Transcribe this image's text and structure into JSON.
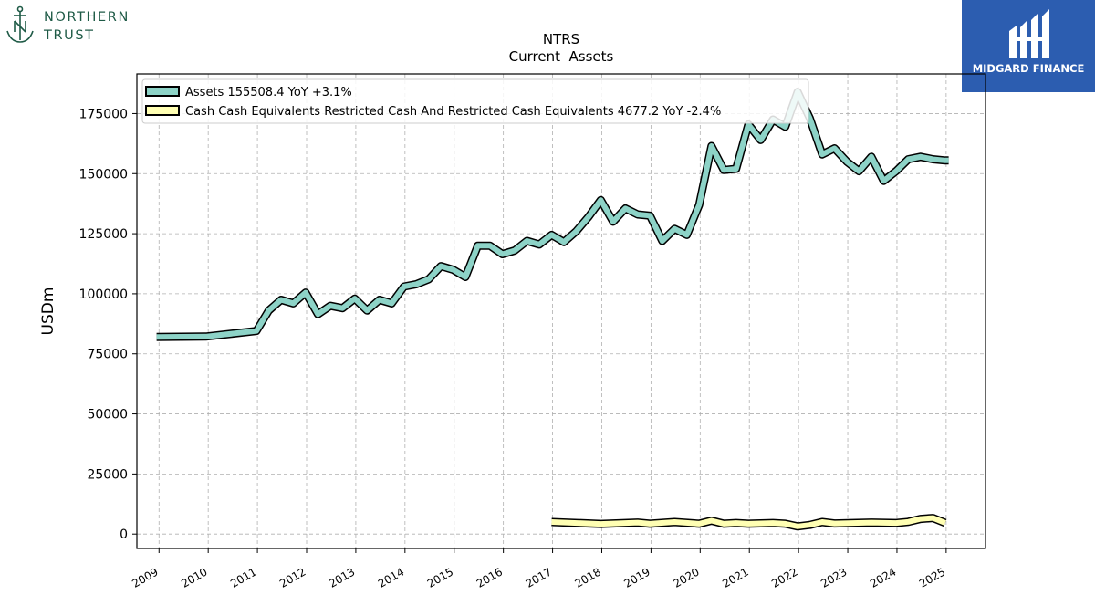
{
  "brand": {
    "line1": "NORTHERN",
    "line2": "TRUST",
    "icon": "anchor-icon"
  },
  "badge": {
    "label": "MIDGARD FINANCE",
    "icon": "midgard-logo-icon",
    "color": "#2c5db0"
  },
  "chart_data": {
    "type": "line",
    "title": "NTRS",
    "subtitle": "Current  Assets",
    "ylabel": "USDm",
    "xlabel": "",
    "xlim": [
      2008.55,
      2025.8
    ],
    "ylim": [
      -6000,
      191500
    ],
    "yticks": [
      0,
      25000,
      50000,
      75000,
      100000,
      125000,
      150000,
      175000
    ],
    "ytick_labels": [
      "0",
      "25000",
      "50000",
      "75000",
      "100000",
      "125000",
      "150000",
      "175000"
    ],
    "xticks": [
      2009,
      2010,
      2011,
      2012,
      2013,
      2014,
      2015,
      2016,
      2017,
      2018,
      2019,
      2020,
      2021,
      2022,
      2023,
      2024,
      2025
    ],
    "xtick_labels": [
      "2009",
      "2010",
      "2011",
      "2012",
      "2013",
      "2014",
      "2015",
      "2016",
      "2017",
      "2018",
      "2019",
      "2020",
      "2021",
      "2022",
      "2023",
      "2024",
      "2025"
    ],
    "grid": true,
    "legend_position": "top-left",
    "series": [
      {
        "name": "Assets",
        "legend": "Assets  155508.4 YoY +3.1%",
        "color": "#8dd3c7",
        "points": [
          [
            2008.95,
            82000
          ],
          [
            2009.95,
            82200
          ],
          [
            2010.98,
            84500
          ],
          [
            2011.23,
            93000
          ],
          [
            2011.48,
            97500
          ],
          [
            2011.73,
            96000
          ],
          [
            2011.98,
            100500
          ],
          [
            2012.23,
            91500
          ],
          [
            2012.48,
            95000
          ],
          [
            2012.73,
            94000
          ],
          [
            2012.98,
            98000
          ],
          [
            2013.23,
            93000
          ],
          [
            2013.48,
            97500
          ],
          [
            2013.73,
            96000
          ],
          [
            2013.98,
            103000
          ],
          [
            2014.23,
            104000
          ],
          [
            2014.48,
            106000
          ],
          [
            2014.73,
            111500
          ],
          [
            2014.98,
            110000
          ],
          [
            2015.23,
            107000
          ],
          [
            2015.48,
            120000
          ],
          [
            2015.73,
            120000
          ],
          [
            2015.98,
            116500
          ],
          [
            2016.23,
            118000
          ],
          [
            2016.48,
            122000
          ],
          [
            2016.73,
            120500
          ],
          [
            2016.98,
            124500
          ],
          [
            2017.23,
            121500
          ],
          [
            2017.48,
            126000
          ],
          [
            2017.73,
            132000
          ],
          [
            2017.98,
            139000
          ],
          [
            2018.23,
            130000
          ],
          [
            2018.48,
            135500
          ],
          [
            2018.73,
            133000
          ],
          [
            2018.98,
            132500
          ],
          [
            2019.23,
            122000
          ],
          [
            2019.48,
            127000
          ],
          [
            2019.73,
            124500
          ],
          [
            2019.98,
            137000
          ],
          [
            2020.23,
            161500
          ],
          [
            2020.48,
            151500
          ],
          [
            2020.73,
            152000
          ],
          [
            2020.98,
            170500
          ],
          [
            2021.23,
            164000
          ],
          [
            2021.48,
            172500
          ],
          [
            2021.73,
            169500
          ],
          [
            2021.98,
            184000
          ],
          [
            2022.23,
            173000
          ],
          [
            2022.48,
            158000
          ],
          [
            2022.73,
            160500
          ],
          [
            2022.98,
            155000
          ],
          [
            2023.23,
            151000
          ],
          [
            2023.48,
            157000
          ],
          [
            2023.73,
            147000
          ],
          [
            2023.98,
            151000
          ],
          [
            2024.23,
            156000
          ],
          [
            2024.48,
            157000
          ],
          [
            2024.73,
            156000
          ],
          [
            2024.98,
            155500
          ],
          [
            2025.05,
            155508.4
          ]
        ]
      },
      {
        "name": "Cash Cash Equivalents Restricted Cash And Restricted Cash Equivalents",
        "legend": "Cash Cash Equivalents Restricted Cash And Restricted Cash Equivalents  4677.2 YoY -2.4%",
        "color": "#ffffb3",
        "points": [
          [
            2016.98,
            5000
          ],
          [
            2017.98,
            4200
          ],
          [
            2018.73,
            4800
          ],
          [
            2018.98,
            4300
          ],
          [
            2019.48,
            5000
          ],
          [
            2019.98,
            4300
          ],
          [
            2020.23,
            5600
          ],
          [
            2020.48,
            4300
          ],
          [
            2020.73,
            4600
          ],
          [
            2020.98,
            4300
          ],
          [
            2021.48,
            4600
          ],
          [
            2021.73,
            4300
          ],
          [
            2021.98,
            3200
          ],
          [
            2022.23,
            3800
          ],
          [
            2022.48,
            5000
          ],
          [
            2022.73,
            4400
          ],
          [
            2023.48,
            4800
          ],
          [
            2023.98,
            4600
          ],
          [
            2024.23,
            5100
          ],
          [
            2024.48,
            6300
          ],
          [
            2024.73,
            6700
          ],
          [
            2024.98,
            4677.2
          ]
        ]
      }
    ]
  }
}
